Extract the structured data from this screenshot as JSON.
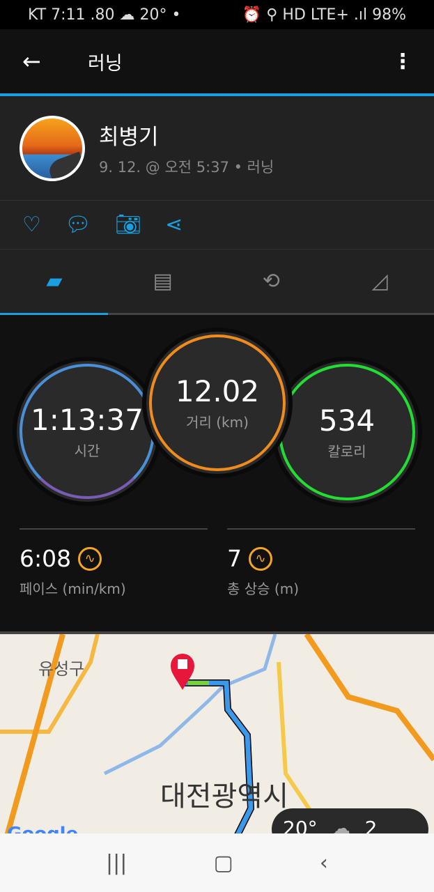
{
  "status": {
    "left": "KT 7:11  .80  ☁  20°  •",
    "right": "⏰ ⚲ HD LTE+ .ıl 98%"
  },
  "appbar": {
    "title": "러닝"
  },
  "user": {
    "name": "최병기",
    "meta": "9. 12. @ 오전 5:37 • 러닝"
  },
  "stats": {
    "time": {
      "value": "1:13:37",
      "label": "시간",
      "color": "#4a90d9"
    },
    "distance": {
      "value": "12.02",
      "label": "거리 (km)",
      "color": "#f08c1e"
    },
    "calories": {
      "value": "534",
      "label": "칼로리",
      "color": "#22dd33"
    },
    "pace": {
      "value": "6:08",
      "label": "페이스 (min/km)"
    },
    "ascent": {
      "value": "7",
      "label": "총 상승 (m)"
    }
  },
  "map": {
    "city": "대전광역시",
    "district": "유성구",
    "google": "Google",
    "temp": "20°",
    "wind": "2"
  },
  "accent": "#1a9fe0"
}
